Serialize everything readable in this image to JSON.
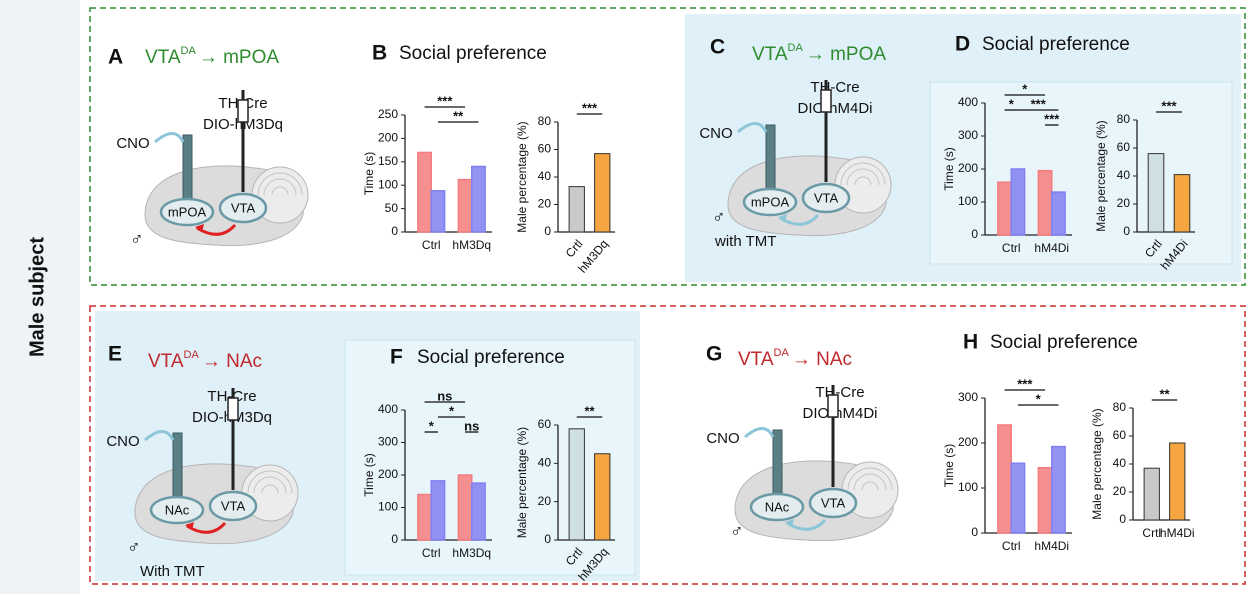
{
  "side_label": "Male subject",
  "diagrams": [
    {
      "letter": "A",
      "title": {
        "main": "VTA",
        "sup": "DA",
        "rest": "→ mPOA"
      },
      "driver": "TH-Cre",
      "virus": "DIO-hM3Dq",
      "drug": "CNO",
      "target": "mPOA",
      "source": "VTA",
      "sex": "♂"
    },
    {
      "letter": "C",
      "title": {
        "main": "VTA",
        "sup": "DA",
        "rest": "→ mPOA"
      },
      "driver": "TH-Cre",
      "virus": "DIO-hM4Di",
      "drug": "CNO",
      "target": "mPOA",
      "source": "VTA",
      "sex": "♂",
      "condition": "with TMT"
    },
    {
      "letter": "E",
      "title": {
        "main": "VTA",
        "sup": "DA",
        "rest": "→ NAc"
      },
      "driver": "TH-Cre",
      "virus": "DIO-hM3Dq",
      "drug": "CNO",
      "target": "NAc",
      "source": "VTA",
      "sex": "♂",
      "condition": "With TMT"
    },
    {
      "letter": "G",
      "title": {
        "main": "VTA",
        "sup": "DA",
        "rest": "→ NAc"
      },
      "driver": "TH-Cre",
      "virus": "DIO-hM4Di",
      "drug": "CNO",
      "target": "NAc",
      "source": "VTA",
      "sex": "♂"
    }
  ],
  "chart_panels": [
    {
      "letter": "B",
      "title": "Social preference"
    },
    {
      "letter": "D",
      "title": "Social preference"
    },
    {
      "letter": "F",
      "title": "Social preference"
    },
    {
      "letter": "H",
      "title": "Social preference"
    }
  ],
  "chart_data": [
    {
      "type": "bar",
      "ylabel": "Time (s)",
      "categories": [
        "Ctrl",
        "hM3Dq"
      ],
      "series": [
        {
          "color": "#f47c7c",
          "values": [
            170,
            112
          ]
        },
        {
          "color": "#8080f0",
          "values": [
            88,
            140
          ]
        }
      ],
      "ylim": [
        0,
        250
      ],
      "yticks": [
        0,
        50,
        100,
        150,
        200,
        250
      ],
      "annotations": [
        "***",
        "**"
      ]
    },
    {
      "type": "bar",
      "ylabel": "Male percentage (%)",
      "categories": [
        "Crtl",
        "hM3Dq"
      ],
      "values": [
        33,
        57
      ],
      "colors": [
        "#c9c9c9",
        "#f5a640"
      ],
      "ylim": [
        0,
        80
      ],
      "yticks": [
        0,
        20,
        40,
        60,
        80
      ],
      "annotations": [
        "***"
      ]
    },
    {
      "type": "bar",
      "ylabel": "Time (s)",
      "categories": [
        "Ctrl",
        "hM4Di"
      ],
      "series": [
        {
          "color": "#f47c7c",
          "values": [
            160,
            195
          ]
        },
        {
          "color": "#8080f0",
          "values": [
            200,
            130
          ]
        }
      ],
      "ylim": [
        0,
        400
      ],
      "yticks": [
        0,
        100,
        200,
        300,
        400
      ],
      "annotations": [
        "*",
        "*",
        "***",
        "***"
      ]
    },
    {
      "type": "bar",
      "ylabel": "Male percentage (%)",
      "categories": [
        "Crtl",
        "hM4Di"
      ],
      "values": [
        56,
        41
      ],
      "colors": [
        "#cfe0e4",
        "#f5a640"
      ],
      "ylim": [
        0,
        80
      ],
      "yticks": [
        0,
        20,
        40,
        60,
        80
      ],
      "annotations": [
        "***"
      ]
    },
    {
      "type": "bar",
      "ylabel": "Time (s)",
      "categories": [
        "Ctrl",
        "hM3Dq"
      ],
      "series": [
        {
          "color": "#f47c7c",
          "values": [
            140,
            200
          ]
        },
        {
          "color": "#8080f0",
          "values": [
            182,
            175
          ]
        }
      ],
      "ylim": [
        0,
        400
      ],
      "yticks": [
        0,
        100,
        200,
        300,
        400
      ],
      "annotations": [
        "ns",
        "*",
        "*",
        "ns"
      ]
    },
    {
      "type": "bar",
      "ylabel": "Male percentage (%)",
      "categories": [
        "Crtl",
        "hM3Dq"
      ],
      "values": [
        58,
        45
      ],
      "colors": [
        "#cfe0e4",
        "#f5a640"
      ],
      "ylim": [
        0,
        60
      ],
      "yticks": [
        0,
        20,
        40,
        60
      ],
      "annotations": [
        "**"
      ]
    },
    {
      "type": "bar",
      "ylabel": "Time (s)",
      "categories": [
        "Ctrl",
        "hM4Di"
      ],
      "series": [
        {
          "color": "#f47c7c",
          "values": [
            240,
            145
          ]
        },
        {
          "color": "#8080f0",
          "values": [
            155,
            192
          ]
        }
      ],
      "ylim": [
        0,
        300
      ],
      "yticks": [
        0,
        100,
        200,
        300
      ],
      "annotations": [
        "***",
        "*"
      ]
    },
    {
      "type": "bar",
      "ylabel": "Male percentage (%)",
      "categories": [
        "Crtl",
        "hM4Di"
      ],
      "values": [
        37,
        55
      ],
      "colors": [
        "#c9c9c9",
        "#f5a640"
      ],
      "ylim": [
        0,
        80
      ],
      "yticks": [
        0,
        20,
        40,
        60,
        80
      ],
      "annotations": [
        "**"
      ]
    }
  ]
}
